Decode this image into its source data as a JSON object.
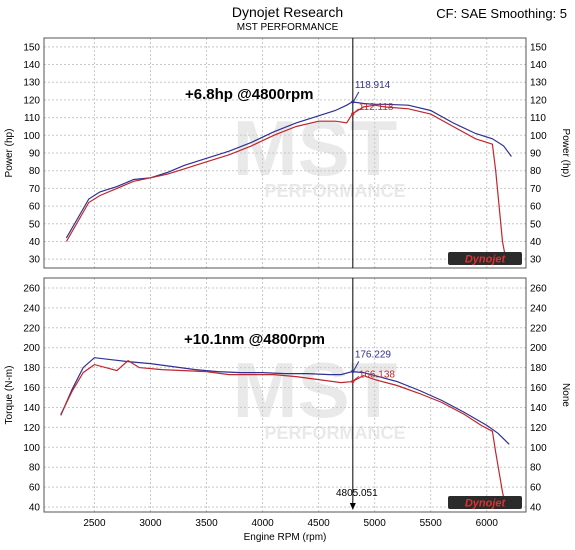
{
  "header": {
    "title": "Dynojet Research",
    "subtitle": "MST PERFORMANCE",
    "correction": "CF: SAE Smoothing: 5"
  },
  "watermark": {
    "text": "MST",
    "sub": "PERFORMANCE"
  },
  "logo": {
    "text": "Dynojet"
  },
  "colors": {
    "run1": "#2e3192",
    "run2": "#c0262c",
    "cursor": "#000000",
    "grid": "#c8c8c8"
  },
  "chart_data": [
    {
      "type": "line",
      "ylabel": "Power (hp)",
      "ylabel_right": "Power (hp)",
      "xlim": [
        2050,
        6350
      ],
      "ylim": [
        25,
        155
      ],
      "yticks": [
        30,
        40,
        50,
        60,
        70,
        80,
        90,
        100,
        110,
        120,
        130,
        140,
        150
      ],
      "annotation": "+6.8hp @4800rpm",
      "cursor": {
        "x": 4805.051,
        "values": [
          "118.914",
          "112.118"
        ]
      },
      "series": [
        {
          "x": [
            2250,
            2350,
            2450,
            2550,
            2700,
            2850,
            3000,
            3150,
            3300,
            3500,
            3700,
            3900,
            4100,
            4300,
            4500,
            4650,
            4750,
            4800,
            4900,
            5000,
            5100,
            5300,
            5500,
            5700,
            5900,
            6050,
            6150,
            6220
          ],
          "values": [
            42,
            53,
            64,
            68,
            71,
            75,
            76,
            79,
            83,
            87,
            91,
            96,
            102,
            107,
            111,
            114,
            117,
            118.9,
            118,
            117.5,
            117.5,
            117,
            114,
            107,
            101,
            98,
            94,
            88
          ]
        },
        {
          "x": [
            2250,
            2350,
            2450,
            2550,
            2700,
            2850,
            3000,
            3150,
            3300,
            3500,
            3700,
            3900,
            4100,
            4300,
            4500,
            4650,
            4750,
            4800,
            4900,
            5000,
            5100,
            5300,
            5500,
            5700,
            5900,
            6050,
            6080,
            6110,
            6140,
            6170
          ],
          "values": [
            40,
            51,
            62,
            66,
            70,
            74,
            76,
            78,
            81,
            85,
            89,
            94,
            100,
            105,
            108,
            108,
            107,
            112.1,
            116,
            117,
            116,
            115,
            112,
            105,
            98,
            95,
            80,
            60,
            40,
            30
          ]
        }
      ]
    },
    {
      "type": "line",
      "ylabel": "Torque (N-m)",
      "ylabel_right": "None",
      "xlabel": "Engine RPM (rpm)",
      "xlim": [
        2050,
        6350
      ],
      "ylim": [
        35,
        270
      ],
      "xticks": [
        2500,
        3000,
        3500,
        4000,
        4500,
        5000,
        5500,
        6000
      ],
      "yticks": [
        40,
        60,
        80,
        100,
        120,
        140,
        160,
        180,
        200,
        220,
        240,
        260
      ],
      "annotation": "+10.1nm @4800rpm",
      "cursor": {
        "x": 4805.051,
        "label": "4805.051",
        "values": [
          "176.229",
          "166.138"
        ]
      },
      "series": [
        {
          "x": [
            2200,
            2300,
            2400,
            2500,
            2650,
            2800,
            3000,
            3200,
            3400,
            3600,
            3800,
            4000,
            4200,
            4400,
            4600,
            4700,
            4800,
            4900,
            5000,
            5200,
            5400,
            5600,
            5800,
            6000,
            6100,
            6200
          ],
          "values": [
            132,
            158,
            180,
            190,
            188,
            186,
            184,
            181,
            178,
            176,
            175,
            175,
            174,
            174,
            173,
            173,
            176,
            175,
            172,
            166,
            157,
            147,
            135,
            122,
            114,
            103
          ]
        },
        {
          "x": [
            2200,
            2300,
            2400,
            2500,
            2600,
            2700,
            2800,
            2900,
            3100,
            3300,
            3500,
            3700,
            3900,
            4100,
            4300,
            4500,
            4700,
            4800,
            4900,
            5000,
            5200,
            5400,
            5600,
            5800,
            5950,
            6050,
            6080,
            6110,
            6140,
            6170
          ],
          "values": [
            133,
            156,
            175,
            183,
            180,
            177,
            187,
            180,
            178,
            177,
            176,
            173,
            173,
            173,
            171,
            168,
            165,
            166,
            172,
            168,
            162,
            154,
            145,
            133,
            122,
            116,
            95,
            75,
            55,
            40
          ]
        }
      ]
    }
  ]
}
